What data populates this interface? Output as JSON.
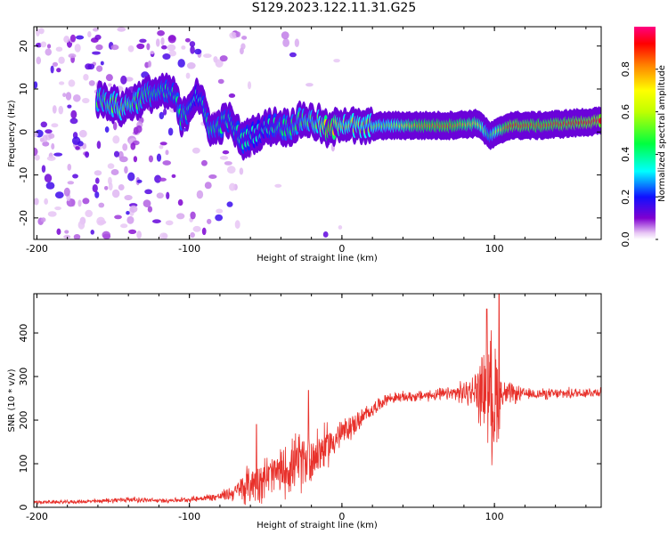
{
  "title": "S129.2023.122.11.31.G25",
  "chart_data": [
    {
      "type": "heatmap",
      "name": "spectrogram",
      "xlabel": "Height of straight line (km)",
      "ylabel": "Frequency (Hz)",
      "xlim": [
        -202,
        170
      ],
      "ylim": [
        -25,
        24.5
      ],
      "xticks": [
        -200,
        -100,
        0,
        100
      ],
      "xtick_labels": [
        "-200",
        "-100",
        "0",
        "100"
      ],
      "yticks": [
        -20,
        -10,
        0,
        10,
        20
      ],
      "ytick_labels": [
        "-20",
        "-10",
        "0",
        "10",
        "20"
      ],
      "colorbar": {
        "label": "Normalized spectral amplitude",
        "range": [
          0,
          1
        ],
        "ticks": [
          0.0,
          0.2,
          0.4,
          0.6,
          0.8
        ],
        "tick_labels": [
          "0.0",
          "0.2",
          "0.4",
          "0.6",
          "0.8"
        ]
      },
      "ridge": [
        {
          "x": -155,
          "f": 7.5,
          "a": 0.5
        },
        {
          "x": -145,
          "f": 5.5,
          "a": 0.55
        },
        {
          "x": -125,
          "f": 9,
          "a": 0.45
        },
        {
          "x": -110,
          "f": 9,
          "a": 0.4
        },
        {
          "x": -105,
          "f": 2.5,
          "a": 0.45
        },
        {
          "x": -95,
          "f": 9.5,
          "a": 0.35
        },
        {
          "x": -85,
          "f": 0,
          "a": 0.45
        },
        {
          "x": -75,
          "f": 3,
          "a": 0.4
        },
        {
          "x": -65,
          "f": -2,
          "a": 0.4
        },
        {
          "x": -55,
          "f": 0,
          "a": 0.35
        },
        {
          "x": -45,
          "f": 1.5,
          "a": 0.4
        },
        {
          "x": -35,
          "f": 1,
          "a": 0.45
        },
        {
          "x": -25,
          "f": 3,
          "a": 0.5
        },
        {
          "x": -15,
          "f": 2,
          "a": 0.55
        },
        {
          "x": -8,
          "f": 0,
          "a": 0.85
        },
        {
          "x": 0,
          "f": 2.5,
          "a": 0.6
        },
        {
          "x": 10,
          "f": 1,
          "a": 0.6
        },
        {
          "x": 30,
          "f": 1.5,
          "a": 0.55
        },
        {
          "x": 50,
          "f": 1.5,
          "a": 0.8
        },
        {
          "x": 70,
          "f": 1.5,
          "a": 0.85
        },
        {
          "x": 90,
          "f": 2,
          "a": 0.7
        },
        {
          "x": 97,
          "f": -1,
          "a": 0.45
        },
        {
          "x": 110,
          "f": 1.5,
          "a": 0.9
        },
        {
          "x": 130,
          "f": 1.5,
          "a": 0.85
        },
        {
          "x": 150,
          "f": 2,
          "a": 0.9
        },
        {
          "x": 168,
          "f": 2.5,
          "a": 0.95
        }
      ]
    },
    {
      "type": "line",
      "name": "snr",
      "xlabel": "Height of straight line (km)",
      "ylabel": "SNR (10 * v/v)",
      "xlim": [
        -202,
        170
      ],
      "ylim": [
        0,
        490
      ],
      "xticks": [
        -200,
        -100,
        0,
        100
      ],
      "xtick_labels": [
        "-200",
        "-100",
        "0",
        "100"
      ],
      "yticks": [
        0,
        100,
        200,
        300,
        400
      ],
      "ytick_labels": [
        "0",
        "100",
        "200",
        "300",
        "400"
      ],
      "color": "#e8302a",
      "series": [
        {
          "name": "SNR",
          "x": [
            -202,
            -180,
            -160,
            -140,
            -120,
            -100,
            -80,
            -70,
            -60,
            -50,
            -40,
            -30,
            -20,
            -10,
            0,
            10,
            20,
            30,
            50,
            70,
            85,
            95,
            100,
            105,
            120,
            140,
            170
          ],
          "y": [
            12,
            12,
            14,
            18,
            15,
            18,
            25,
            35,
            55,
            70,
            80,
            100,
            115,
            140,
            170,
            195,
            225,
            250,
            255,
            260,
            265,
            270,
            250,
            260,
            260,
            260,
            265
          ],
          "noise": [
            5,
            5,
            6,
            8,
            6,
            7,
            12,
            25,
            60,
            60,
            65,
            80,
            80,
            60,
            40,
            30,
            20,
            15,
            15,
            18,
            40,
            130,
            200,
            40,
            15,
            15,
            15
          ],
          "peaks": [
            {
              "x": -56,
              "y": 190
            },
            {
              "x": -22,
              "y": 268
            },
            {
              "x": 95,
              "y": 455
            },
            {
              "x": 103,
              "y": 490
            }
          ]
        }
      ]
    }
  ]
}
